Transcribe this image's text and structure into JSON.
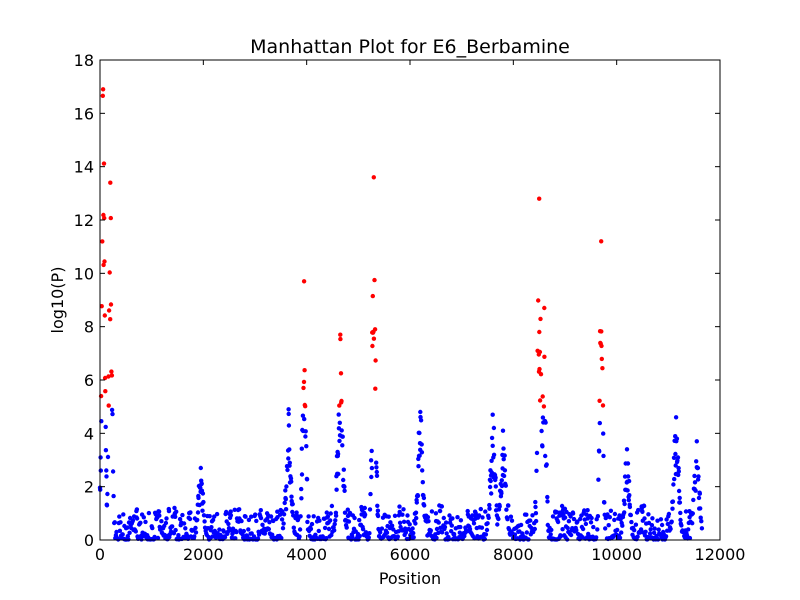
{
  "chart_data": {
    "type": "scatter",
    "title": "Manhattan Plot for E6_Berbamine",
    "xlabel": "Position",
    "ylabel": "log10(P)",
    "xlim": [
      0,
      12000
    ],
    "ylim": [
      0,
      18
    ],
    "xticks": [
      0,
      2000,
      4000,
      6000,
      8000,
      10000,
      12000
    ],
    "yticks": [
      0,
      2,
      4,
      6,
      8,
      10,
      12,
      14,
      16,
      18
    ],
    "grid": false,
    "legend": "none",
    "threshold": 5,
    "colors": {
      "above_threshold": "#ff0000",
      "below_threshold": "#0000ff",
      "frame": "#000000"
    },
    "peaks": [
      {
        "x": 60,
        "y": 16.9
      },
      {
        "x": 200,
        "y": 13.4
      },
      {
        "x": 1950,
        "y": 2.7
      },
      {
        "x": 3650,
        "y": 4.9
      },
      {
        "x": 3950,
        "y": 9.7
      },
      {
        "x": 4650,
        "y": 7.7
      },
      {
        "x": 5300,
        "y": 13.6
      },
      {
        "x": 6200,
        "y": 4.8
      },
      {
        "x": 7600,
        "y": 4.7
      },
      {
        "x": 7800,
        "y": 4.1
      },
      {
        "x": 8500,
        "y": 12.8
      },
      {
        "x": 8600,
        "y": 8.7
      },
      {
        "x": 9700,
        "y": 11.2
      },
      {
        "x": 10200,
        "y": 3.4
      },
      {
        "x": 11150,
        "y": 4.6
      },
      {
        "x": 11550,
        "y": 3.7
      }
    ]
  }
}
